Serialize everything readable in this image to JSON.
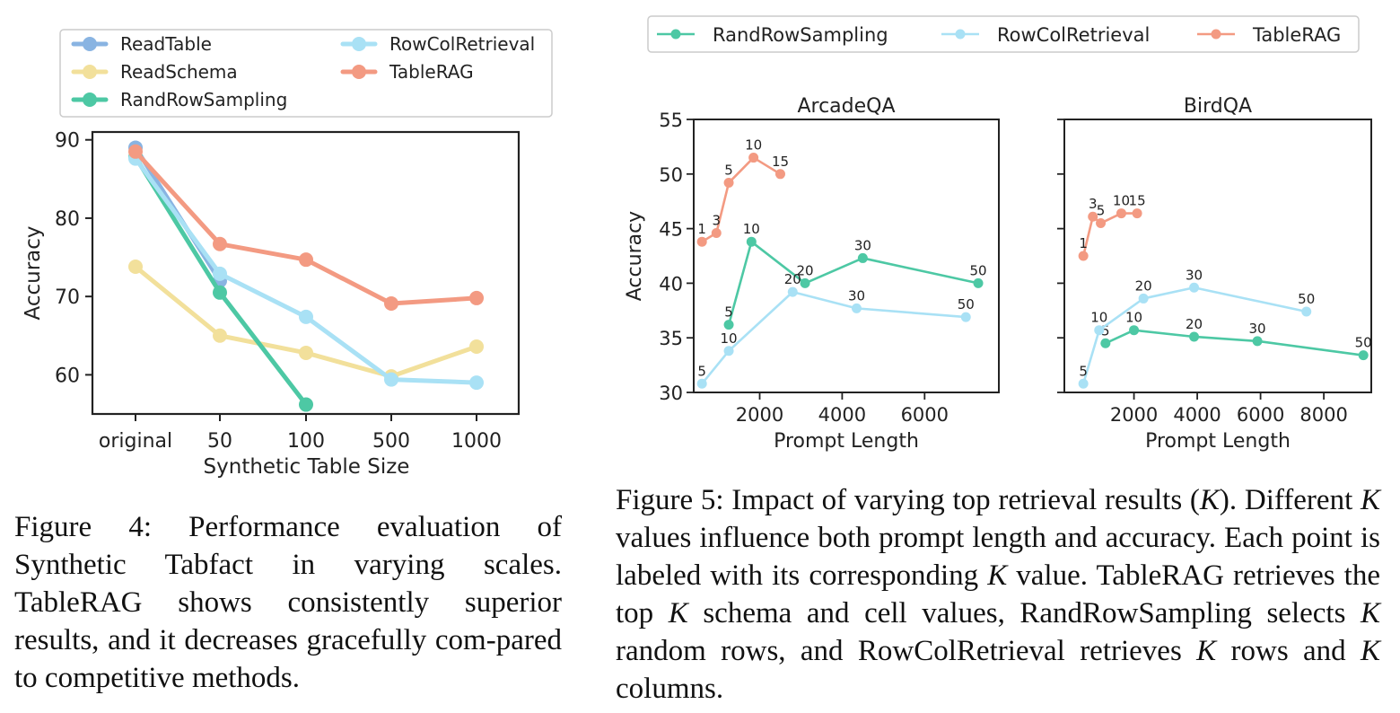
{
  "chart_data": [
    {
      "type": "line",
      "xlabel": "Synthetic Table Size",
      "ylabel": "Accuracy",
      "categories": [
        "original",
        "50",
        "100",
        "500",
        "1000"
      ],
      "ylim": [
        55,
        91
      ],
      "yticks": [
        60,
        70,
        80,
        90
      ],
      "grid": false,
      "legend_position": "top",
      "series": [
        {
          "name": "ReadTable",
          "color": "#89b4e2",
          "values": [
            89.0,
            72.0,
            null,
            null,
            null
          ]
        },
        {
          "name": "ReadSchema",
          "color": "#f2e09b",
          "values": [
            73.8,
            65.0,
            62.8,
            59.8,
            63.6
          ]
        },
        {
          "name": "RandRowSampling",
          "color": "#4dc8a4",
          "values": [
            87.8,
            70.5,
            56.2,
            null,
            null
          ]
        },
        {
          "name": "RowColRetrieval",
          "color": "#a9e1f5",
          "values": [
            87.6,
            72.9,
            67.4,
            59.4,
            59.0
          ]
        },
        {
          "name": "TableRAG",
          "color": "#f39a82",
          "values": [
            88.5,
            76.7,
            74.7,
            69.1,
            69.8
          ]
        }
      ]
    },
    {
      "type": "scatter",
      "title": "ArcadeQA",
      "xlabel": "Prompt Length",
      "ylabel": "Accuracy",
      "xlim": [
        400,
        7800
      ],
      "ylim": [
        30,
        55
      ],
      "xticks": [
        2000,
        4000,
        6000
      ],
      "yticks": [
        30,
        35,
        40,
        45,
        50,
        55
      ],
      "series": [
        {
          "name": "RandRowSampling",
          "color": "#4dc8a4",
          "points": [
            {
              "x": 1250,
              "y": 36.2,
              "k": "5"
            },
            {
              "x": 1800,
              "y": 43.8,
              "k": "10"
            },
            {
              "x": 3100,
              "y": 40.0,
              "k": "20"
            },
            {
              "x": 4500,
              "y": 42.3,
              "k": "30"
            },
            {
              "x": 7300,
              "y": 40.0,
              "k": "50"
            }
          ]
        },
        {
          "name": "RowColRetrieval",
          "color": "#a9e1f5",
          "points": [
            {
              "x": 600,
              "y": 30.8,
              "k": "5"
            },
            {
              "x": 1250,
              "y": 33.8,
              "k": "10"
            },
            {
              "x": 2800,
              "y": 39.2,
              "k": "20"
            },
            {
              "x": 4350,
              "y": 37.7,
              "k": "30"
            },
            {
              "x": 7000,
              "y": 36.9,
              "k": "50"
            }
          ]
        },
        {
          "name": "TableRAG",
          "color": "#f39a82",
          "points": [
            {
              "x": 600,
              "y": 43.8,
              "k": "1"
            },
            {
              "x": 950,
              "y": 44.6,
              "k": "3"
            },
            {
              "x": 1250,
              "y": 49.2,
              "k": "5"
            },
            {
              "x": 1850,
              "y": 51.5,
              "k": "10"
            },
            {
              "x": 2500,
              "y": 50.0,
              "k": "15"
            }
          ]
        }
      ]
    },
    {
      "type": "scatter",
      "title": "BirdQA",
      "xlabel": "Prompt Length",
      "ylabel": "",
      "xlim": [
        -200,
        9500
      ],
      "ylim": [
        30,
        55
      ],
      "xticks": [
        2000,
        4000,
        6000,
        8000
      ],
      "yticks": [
        30,
        35,
        40,
        45,
        50,
        55
      ],
      "series": [
        {
          "name": "RandRowSampling",
          "color": "#4dc8a4",
          "points": [
            {
              "x": 1100,
              "y": 34.5,
              "k": "5"
            },
            {
              "x": 2000,
              "y": 35.7,
              "k": "10"
            },
            {
              "x": 3900,
              "y": 35.1,
              "k": "20"
            },
            {
              "x": 5900,
              "y": 34.7,
              "k": "30"
            },
            {
              "x": 9250,
              "y": 33.4,
              "k": "50"
            }
          ]
        },
        {
          "name": "RowColRetrieval",
          "color": "#a9e1f5",
          "points": [
            {
              "x": 400,
              "y": 30.8,
              "k": "5"
            },
            {
              "x": 900,
              "y": 35.7,
              "k": "10"
            },
            {
              "x": 2300,
              "y": 38.6,
              "k": "20"
            },
            {
              "x": 3900,
              "y": 39.6,
              "k": "30"
            },
            {
              "x": 7450,
              "y": 37.4,
              "k": "50"
            }
          ]
        },
        {
          "name": "TableRAG",
          "color": "#f39a82",
          "points": [
            {
              "x": 400,
              "y": 42.5,
              "k": "1"
            },
            {
              "x": 700,
              "y": 46.1,
              "k": "3"
            },
            {
              "x": 950,
              "y": 45.5,
              "k": "5"
            },
            {
              "x": 1600,
              "y": 46.4,
              "k": "10"
            },
            {
              "x": 2100,
              "y": 46.4,
              "k": "15"
            }
          ]
        }
      ]
    }
  ],
  "figure5_legend": [
    "RandRowSampling",
    "RowColRetrieval",
    "TableRAG"
  ],
  "captions": {
    "fig4_p1": "Figure 4:  Performance evaluation of Synthetic Tabfact in varying scales. TableRAG shows consistently superior results, and it decreases gracefully com-pared to competitive methods.",
    "fig5_p1": "Figure 5:  Impact of varying top retrieval results (",
    "fig5_k1": "K",
    "fig5_p2": "). Different ",
    "fig5_k2": "K",
    "fig5_p3": " values influence both prompt length and accuracy. Each point is labeled with its corresponding ",
    "fig5_k3": "K",
    "fig5_p4": " value. TableRAG retrieves the top ",
    "fig5_k4": "K",
    "fig5_p5": " schema and cell values, RandRowSampling selects ",
    "fig5_k5": "K",
    "fig5_p6": " random rows, and RowColRetrieval retrieves ",
    "fig5_k6": "K",
    "fig5_p7": " rows and ",
    "fig5_k7": "K",
    "fig5_p8": " columns."
  }
}
